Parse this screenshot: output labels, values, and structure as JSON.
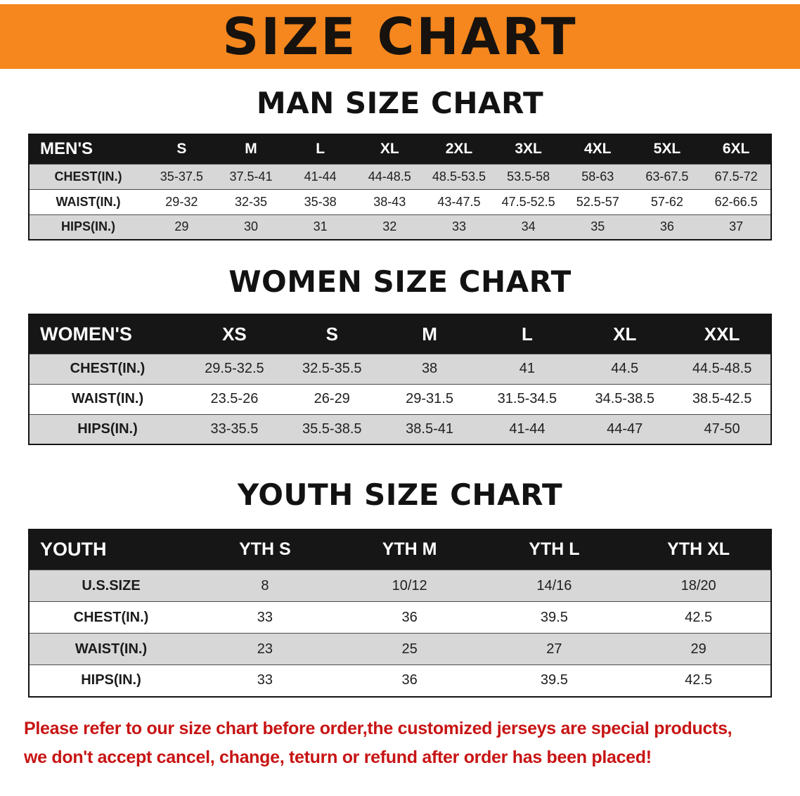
{
  "banner": {
    "title": "SIZE CHART"
  },
  "sections": [
    {
      "heading": "MAN SIZE CHART",
      "table": {
        "header": [
          "MEN'S",
          "S",
          "M",
          "L",
          "XL",
          "2XL",
          "3XL",
          "4XL",
          "5XL",
          "6XL"
        ],
        "rows": [
          [
            "CHEST(IN.)",
            "35-37.5",
            "37.5-41",
            "41-44",
            "44-48.5",
            "48.5-53.5",
            "53.5-58",
            "58-63",
            "63-67.5",
            "67.5-72"
          ],
          [
            "WAIST(IN.)",
            "29-32",
            "32-35",
            "35-38",
            "38-43",
            "43-47.5",
            "47.5-52.5",
            "52.5-57",
            "57-62",
            "62-66.5"
          ],
          [
            "HIPS(IN.)",
            "29",
            "30",
            "31",
            "32",
            "33",
            "34",
            "35",
            "36",
            "37"
          ]
        ]
      }
    },
    {
      "heading": "WOMEN SIZE CHART",
      "table": {
        "header": [
          "WOMEN'S",
          "XS",
          "S",
          "M",
          "L",
          "XL",
          "XXL"
        ],
        "rows": [
          [
            "CHEST(IN.)",
            "29.5-32.5",
            "32.5-35.5",
            "38",
            "41",
            "44.5",
            "44.5-48.5"
          ],
          [
            "WAIST(IN.)",
            "23.5-26",
            "26-29",
            "29-31.5",
            "31.5-34.5",
            "34.5-38.5",
            "38.5-42.5"
          ],
          [
            "HIPS(IN.)",
            "33-35.5",
            "35.5-38.5",
            "38.5-41",
            "41-44",
            "44-47",
            "47-50"
          ]
        ]
      }
    },
    {
      "heading": "YOUTH SIZE CHART",
      "table": {
        "header": [
          "YOUTH",
          "YTH S",
          "YTH M",
          "YTH L",
          "YTH XL"
        ],
        "rows": [
          [
            "U.S.SIZE",
            "8",
            "10/12",
            "14/16",
            "18/20"
          ],
          [
            "CHEST(IN.)",
            "33",
            "36",
            "39.5",
            "42.5"
          ],
          [
            "WAIST(IN.)",
            "23",
            "25",
            "27",
            "29"
          ],
          [
            "HIPS(IN.)",
            "33",
            "36",
            "39.5",
            "42.5"
          ]
        ]
      }
    }
  ],
  "footer": {
    "lines": [
      "Please refer to our size chart before order,the customized jerseys are special products,",
      "we don't accept cancel, change, teturn or refund after order has been placed!"
    ]
  },
  "colors": {
    "banner_orange": "#f5871e",
    "table_header_black": "#161616",
    "row_gray": "#d7d7d7",
    "notice_red": "#c81414"
  }
}
